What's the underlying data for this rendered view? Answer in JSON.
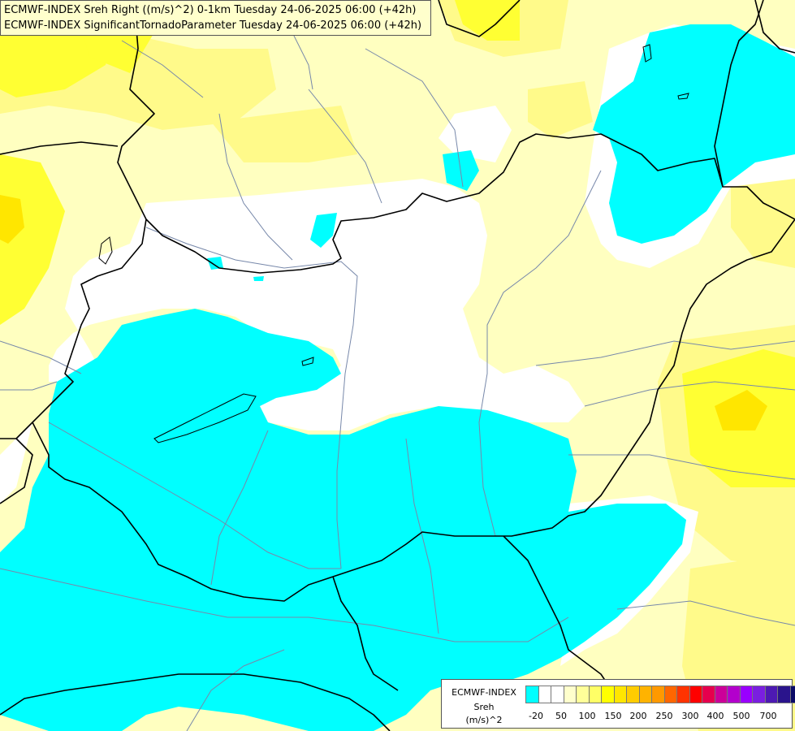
{
  "title": {
    "line1": "ECMWF-INDEX Sreh Right ((m/s)^2) 0-1km Tuesday 24-06-2025 06:00 (+42h)",
    "line2": "ECMWF-INDEX SignificantTornadoParameter Tuesday 24-06-2025 06:00 (+42h)"
  },
  "legend": {
    "line1": "ECMWF-INDEX",
    "line2": "Sreh",
    "line3": "(m/s)^2",
    "colors": [
      "#00ffff",
      "#ffffff",
      "#ffffff",
      "#ffffcc",
      "#ffff99",
      "#ffff66",
      "#ffff00",
      "#ffe600",
      "#ffcc00",
      "#ffb300",
      "#ff9900",
      "#ff6600",
      "#ff3300",
      "#ff0000",
      "#e6004d",
      "#cc0099",
      "#b300cc",
      "#9900ff",
      "#7a1fe0",
      "#4d1ab3",
      "#2a148c",
      "#0a0a66"
    ],
    "ticks": [
      "-20",
      "50",
      "100",
      "150",
      "200",
      "250",
      "300",
      "400",
      "500",
      "700"
    ]
  },
  "colors": {
    "cyan": "#00ffff",
    "white": "#ffffff",
    "pale_yellow": "#ffffc0",
    "light_yellow": "#fffa8a",
    "yellow": "#ffff33",
    "gold": "#ffe600",
    "border": "#000000",
    "river": "#7788aa"
  }
}
